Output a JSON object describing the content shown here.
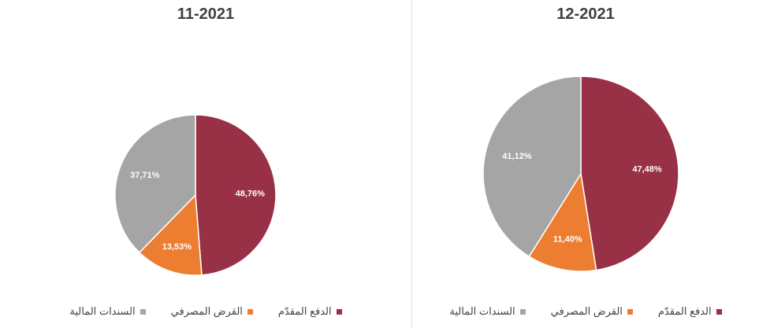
{
  "chart_data": [
    {
      "type": "pie",
      "title": "11-2021",
      "slices": [
        {
          "label": "الدفع المقدّم",
          "value": 48.76,
          "display": "48,76%",
          "color": "#983046"
        },
        {
          "label": "القرض  المصرفي",
          "value": 13.53,
          "display": "13,53%",
          "color": "#ED7D31"
        },
        {
          "label": "السندات المالية",
          "value": 37.71,
          "display": "37,71%",
          "color": "#A5A5A5"
        }
      ],
      "legend": "bottom",
      "start_angle": "12 o'clock",
      "direction": "clockwise"
    },
    {
      "type": "pie",
      "title": "12-2021",
      "slices": [
        {
          "label": "الدفع المقدّم",
          "value": 47.48,
          "display": "47,48%",
          "color": "#983046"
        },
        {
          "label": "القرض المصرفي",
          "value": 11.4,
          "display": "11,40%",
          "color": "#ED7D31"
        },
        {
          "label": "السندات المالية",
          "value": 41.12,
          "display": "41,12%",
          "color": "#A5A5A5"
        }
      ],
      "legend": "bottom",
      "start_angle": "12 o'clock",
      "direction": "clockwise"
    }
  ]
}
